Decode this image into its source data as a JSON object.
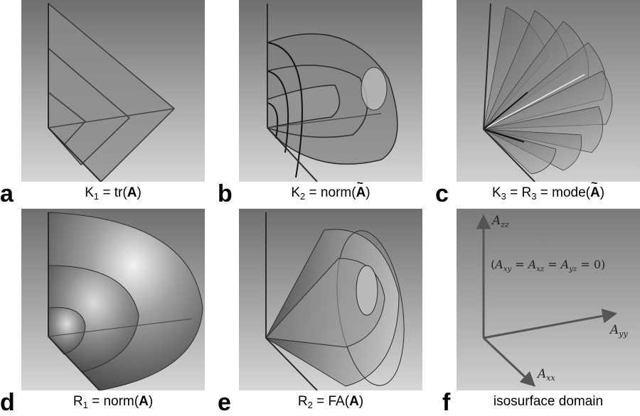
{
  "panels": [
    {
      "letter": "a",
      "caption": {
        "pre": "K",
        "sub": "1",
        "mid": " = tr(",
        "bold": "A",
        "post": ")",
        "tilde": false
      }
    },
    {
      "letter": "b",
      "caption": {
        "pre": "K",
        "sub": "2",
        "mid": " = norm(",
        "bold": "A",
        "post": ")",
        "tilde": true
      }
    },
    {
      "letter": "c",
      "caption": {
        "pre": "K",
        "sub": "3",
        "mid": " = R",
        "sub2": "3",
        "mid2": " = mode(",
        "bold": "A",
        "post": ")",
        "tilde": true
      }
    },
    {
      "letter": "d",
      "caption": {
        "pre": "R",
        "sub": "1",
        "mid": " = norm(",
        "bold": "A",
        "post": ")",
        "tilde": false
      }
    },
    {
      "letter": "e",
      "caption": {
        "pre": "R",
        "sub": "2",
        "mid": " = FA(",
        "bold": "A",
        "post": ")",
        "tilde": false
      }
    },
    {
      "letter": "f",
      "caption": {
        "text": "isosurface domain"
      }
    }
  ],
  "domain_labels": {
    "azz_base": "A",
    "azz_sub": "zz",
    "ayy_base": "A",
    "ayy_sub": "yy",
    "axx_base": "A",
    "axx_sub": "xx",
    "constraint": "(A_xy = A_xz = A_yz = 0)",
    "constraint_parts": [
      "(",
      "A",
      "xy",
      " = ",
      "A",
      "xz",
      " = ",
      "A",
      "yz",
      " = 0)"
    ]
  },
  "colors": {
    "bg_top": "#6f6f6f",
    "bg_bottom": "#d4d4d4",
    "axis": "#333333",
    "surface": "#7a7a7a"
  }
}
